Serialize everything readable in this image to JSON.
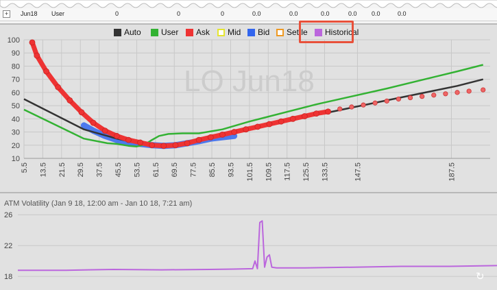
{
  "top_row": {
    "symbol": "Jun18",
    "source": "User",
    "cells": [
      "0",
      "0",
      "0",
      "0.0",
      "0.0",
      "0.0",
      "0.0",
      "0.0",
      "0.0"
    ]
  },
  "legend": [
    {
      "label": "Auto",
      "color": "#333333",
      "filled": true
    },
    {
      "label": "User",
      "color": "#33b233",
      "filled": true
    },
    {
      "label": "Ask",
      "color": "#ee3333",
      "filled": true
    },
    {
      "label": "Mid",
      "color": "#e5e530",
      "filled": false
    },
    {
      "label": "Bid",
      "color": "#3366ee",
      "filled": true
    },
    {
      "label": "Settle",
      "color": "#ee9922",
      "filled": false
    },
    {
      "label": "Historical",
      "color": "#bb66dd",
      "filled": true
    }
  ],
  "watermark": "LO Jun18",
  "vol_title": "ATM Volatility (Jan 9 18, 12:00 am - Jan 10 18, 7:21 am)",
  "chart_data": [
    {
      "type": "line",
      "title": "",
      "xlabel": "",
      "ylabel": "",
      "xlim": [
        5.5,
        204
      ],
      "ylim": [
        10,
        100
      ],
      "x_ticks": [
        "5.5",
        "13.5",
        "21.5",
        "29.5",
        "37.5",
        "45.5",
        "53.5",
        "61.5",
        "69.5",
        "77.5",
        "85.5",
        "93.5",
        "101.5",
        "109.5",
        "117.5",
        "125.5",
        "133.5",
        "147.5",
        "187.5"
      ],
      "y_ticks": [
        "10",
        "20",
        "30",
        "40",
        "50",
        "60",
        "70",
        "80",
        "90",
        "100"
      ],
      "grid": true,
      "legend_position": "top-center",
      "series": [
        {
          "name": "Auto",
          "color": "#333333",
          "x": [
            5.5,
            31,
            45,
            55,
            65,
            75,
            90,
            101.5,
            130,
            160,
            190,
            201
          ],
          "y": [
            55,
            32,
            25,
            21,
            19.5,
            22,
            27,
            32,
            43,
            54,
            65,
            70
          ]
        },
        {
          "name": "User",
          "color": "#33b233",
          "x": [
            5.5,
            31,
            41,
            45,
            50,
            53.5,
            57,
            60,
            63,
            67,
            73,
            80,
            90,
            101.5,
            130,
            160,
            190,
            201
          ],
          "y": [
            47,
            25,
            21.5,
            21,
            19.5,
            19,
            20.5,
            24,
            27,
            28.5,
            29,
            29,
            32,
            38,
            51,
            63,
            76,
            81
          ]
        },
        {
          "name": "Ask",
          "color": "#ee3333",
          "x": [
            9,
            11,
            15,
            20,
            25,
            30,
            35,
            40,
            45,
            50,
            55,
            60,
            65,
            70,
            75,
            80,
            85,
            90,
            95,
            100,
            105,
            110,
            115,
            120,
            125,
            130,
            135
          ],
          "y": [
            98,
            88,
            76,
            64,
            54,
            45,
            37,
            31,
            27,
            24,
            22,
            20,
            19.5,
            20,
            21.5,
            24,
            26,
            28,
            30,
            32,
            34,
            36,
            38,
            40,
            42,
            44,
            45.5
          ]
        },
        {
          "name": "Ask (far strikes)",
          "color": "#ee6666",
          "x": [
            140,
            145,
            150,
            155,
            160,
            165,
            170,
            175,
            180,
            185,
            190,
            195,
            201
          ],
          "y": [
            47.5,
            49,
            50.5,
            52,
            53.5,
            55,
            56,
            57,
            58,
            59,
            60,
            61,
            62
          ]
        },
        {
          "name": "Bid",
          "color": "#3366ee",
          "x": [
            31,
            35,
            40,
            45,
            50,
            55,
            60,
            65,
            70,
            75,
            80,
            85,
            90,
            95
          ],
          "y": [
            35,
            31,
            27,
            24,
            22,
            21,
            20,
            19.5,
            20,
            21.5,
            23,
            25,
            26,
            27
          ]
        }
      ]
    },
    {
      "type": "line",
      "title": "ATM Volatility (Jan 9 18, 12:00 am - Jan 10 18, 7:21 am)",
      "ylim": [
        16.5,
        27
      ],
      "y_ticks": [
        "18",
        "22",
        "26"
      ],
      "grid": true,
      "series": [
        {
          "name": "Historical",
          "color": "#bb66dd",
          "x": [
            0,
            0.1,
            0.2,
            0.3,
            0.4,
            0.45,
            0.49,
            0.495,
            0.5,
            0.505,
            0.51,
            0.515,
            0.52,
            0.525,
            0.53,
            0.54,
            0.6,
            0.7,
            0.8,
            0.9,
            1.0
          ],
          "y": [
            18.8,
            18.8,
            18.9,
            18.85,
            18.9,
            18.95,
            19.0,
            20.0,
            19.0,
            25.0,
            25.2,
            19.2,
            20.5,
            20.8,
            19.2,
            19.1,
            19.1,
            19.2,
            19.3,
            19.3,
            19.4
          ]
        }
      ]
    }
  ]
}
